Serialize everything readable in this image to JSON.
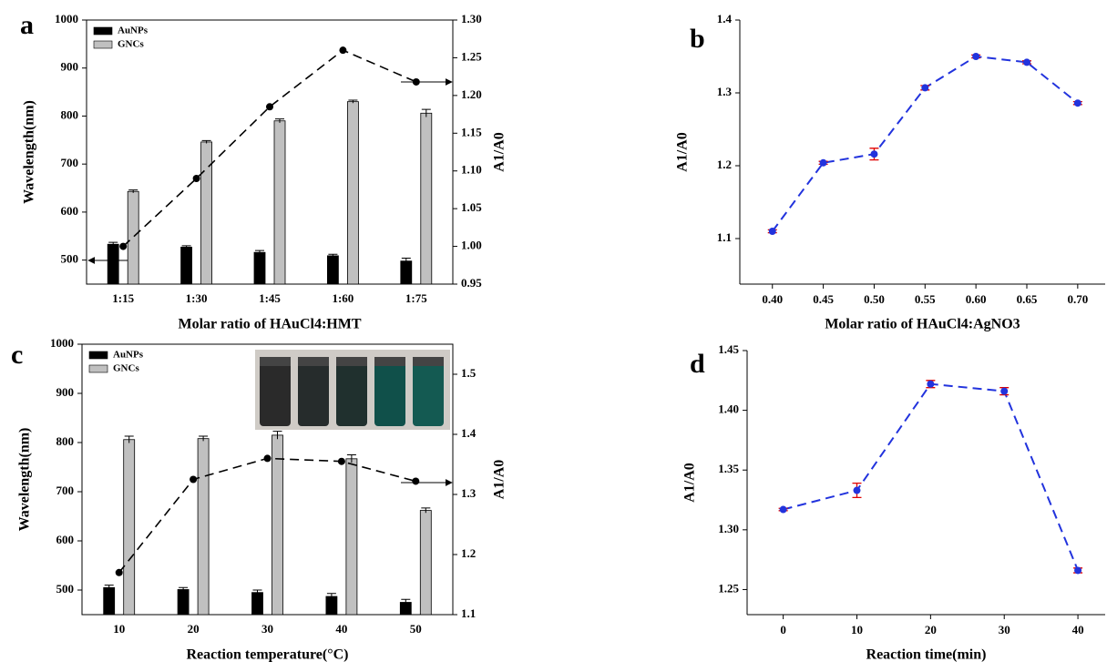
{
  "chart_data": [
    {
      "type": "bar",
      "label": "a",
      "x_label": "Molar ratio of HAuCl4:HMT",
      "y_label": "Wavelength(nm)",
      "y2_label": "A1/A0",
      "categories": [
        "1:15",
        "1:30",
        "1:45",
        "1:60",
        "1:75"
      ],
      "series": [
        {
          "name": "AuNPs",
          "color": "#000000",
          "values": [
            533,
            527,
            516,
            509,
            498
          ],
          "errors": [
            4,
            3,
            4,
            3,
            6
          ]
        },
        {
          "name": "GNCs",
          "color": "#c0c0c0",
          "values": [
            643,
            746,
            790,
            830,
            806
          ],
          "errors": [
            3,
            3,
            4,
            3,
            8
          ]
        },
        {
          "type": "line",
          "axis": "y2",
          "color": "#000000",
          "values": [
            1.0,
            1.09,
            1.185,
            1.26,
            1.218
          ]
        }
      ],
      "ylim": [
        450,
        1000
      ],
      "yticks": [
        500,
        600,
        700,
        800,
        900,
        1000
      ],
      "y2lim": [
        0.95,
        1.3
      ],
      "y2ticks": [
        0.95,
        {
          "value": 1.0,
          "label": "1.00"
        },
        1.05,
        {
          "value": 1.1,
          "label": "1.10"
        },
        1.15,
        {
          "value": 1.2,
          "label": "1.20"
        },
        1.25,
        {
          "value": 1.3,
          "label": "1.30"
        }
      ],
      "legend": "upper left"
    },
    {
      "type": "line",
      "label": "b",
      "x_label": "Molar ratio of HAuCl4:AgNO3",
      "y_label": "A1/A0",
      "x": [
        0.4,
        0.45,
        0.5,
        0.55,
        0.6,
        0.65,
        0.7
      ],
      "series": [
        {
          "color": "#2233dd",
          "error_color": "#e00000",
          "values": [
            1.11,
            1.204,
            1.216,
            1.307,
            1.35,
            1.342,
            1.286
          ],
          "errors": [
            0.002,
            0.002,
            0.008,
            0.003,
            0.002,
            0.002,
            0.002
          ]
        }
      ],
      "xlim": [
        0.368,
        0.727
      ],
      "xticks": [
        {
          "value": 0.4,
          "label": "0.40"
        },
        0.45,
        {
          "value": 0.5,
          "label": "0.50"
        },
        0.55,
        {
          "value": 0.6,
          "label": "0.60"
        },
        0.65,
        {
          "value": 0.7,
          "label": "0.70"
        }
      ],
      "ylim": [
        1.0375,
        1.4
      ],
      "yticks": [
        1.1,
        1.2,
        1.3,
        1.4
      ]
    },
    {
      "type": "bar",
      "label": "c",
      "x_label": "Reaction temperature(°C)",
      "y_label": "Wavelength(nm)",
      "y2_label": "A1/A0",
      "categories": [
        "10",
        "20",
        "30",
        "40",
        "50"
      ],
      "series": [
        {
          "name": "AuNPs",
          "color": "#000000",
          "values": [
            505,
            501,
            495,
            487,
            475
          ],
          "errors": [
            5,
            4,
            5,
            6,
            6
          ]
        },
        {
          "name": "GNCs",
          "color": "#c0c0c0",
          "values": [
            806,
            808,
            815,
            767,
            662
          ],
          "errors": [
            7,
            5,
            8,
            8,
            5
          ]
        },
        {
          "type": "line",
          "axis": "y2",
          "color": "#000000",
          "values": [
            1.17,
            1.325,
            1.36,
            1.355,
            1.322
          ]
        }
      ],
      "ylim": [
        450,
        1000
      ],
      "yticks": [
        500,
        600,
        700,
        800,
        900,
        1000
      ],
      "y2lim": [
        1.1,
        1.55
      ],
      "y2ticks": [
        1.1,
        1.2,
        1.3,
        1.4,
        1.5
      ],
      "legend": "upper left"
    },
    {
      "type": "line",
      "label": "d",
      "x_label": "Reaction time(min)",
      "y_label": "A1/A0",
      "x": [
        0,
        10,
        20,
        30,
        40
      ],
      "series": [
        {
          "color": "#2233dd",
          "error_color": "#e00000",
          "values": [
            1.317,
            1.333,
            1.422,
            1.416,
            1.266
          ],
          "errors": [
            0.001,
            0.006,
            0.003,
            0.003,
            0.002
          ]
        }
      ],
      "xlim": [
        -4.9,
        43.7
      ],
      "xticks": [
        0,
        10,
        20,
        30,
        40
      ],
      "ylim": [
        1.229,
        1.45
      ],
      "yticks": [
        1.25,
        {
          "value": 1.3,
          "label": "1.30"
        },
        1.35,
        {
          "value": 1.4,
          "label": "1.40"
        },
        1.45
      ]
    }
  ]
}
